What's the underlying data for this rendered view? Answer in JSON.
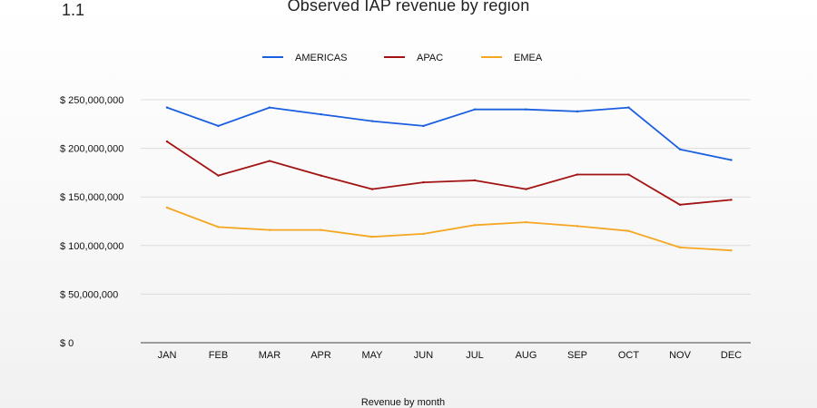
{
  "figure": {
    "number": "1.1"
  },
  "chart_data": {
    "type": "line",
    "title": "Observed IAP revenue by region",
    "xlabel": "Revenue by month",
    "ylabel": "",
    "categories": [
      "JAN",
      "FEB",
      "MAR",
      "APR",
      "MAY",
      "JUN",
      "JUL",
      "AUG",
      "SEP",
      "OCT",
      "NOV",
      "DEC"
    ],
    "ylim": [
      0,
      250000000
    ],
    "yticks": [
      0,
      50000000,
      100000000,
      150000000,
      200000000,
      250000000
    ],
    "ytick_labels": [
      "$ 0",
      "$ 50,000,000",
      "$ 100,000,000",
      "$ 150,000,000",
      "$ 200,000,000",
      "$ 250,000,000"
    ],
    "grid": true,
    "legend_position": "top-center",
    "series": [
      {
        "name": "AMERICAS",
        "color": "#1a5fe0",
        "values": [
          242000000,
          223000000,
          242000000,
          235000000,
          228000000,
          223000000,
          240000000,
          240000000,
          238000000,
          242000000,
          199000000,
          188000000
        ]
      },
      {
        "name": "APAC",
        "color": "#a31313",
        "values": [
          207000000,
          172000000,
          187000000,
          172000000,
          158000000,
          165000000,
          167000000,
          158000000,
          173000000,
          173000000,
          142000000,
          147000000
        ]
      },
      {
        "name": "EMEA",
        "color": "#f5a623",
        "values": [
          139000000,
          119000000,
          116000000,
          116000000,
          109000000,
          112000000,
          121000000,
          124000000,
          120000000,
          115000000,
          98000000,
          95000000
        ]
      }
    ]
  }
}
